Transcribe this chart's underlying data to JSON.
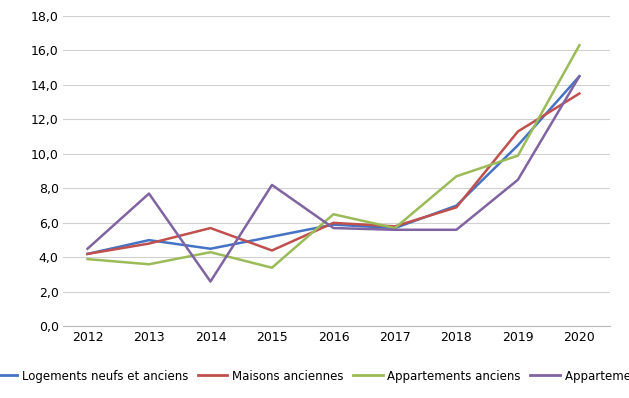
{
  "years": [
    2012,
    2013,
    2014,
    2015,
    2016,
    2017,
    2018,
    2019,
    2020
  ],
  "series": {
    "Logements neufs et anciens": {
      "values": [
        4.2,
        5.0,
        4.5,
        5.2,
        5.9,
        5.7,
        7.0,
        10.5,
        14.5
      ],
      "color": "#4472C4"
    },
    "Maisons anciennes": {
      "values": [
        4.2,
        4.8,
        5.7,
        4.4,
        6.0,
        5.8,
        6.9,
        11.3,
        13.5
      ],
      "color": "#C0504D"
    },
    "Appartements anciens": {
      "values": [
        3.9,
        3.6,
        4.3,
        3.4,
        6.5,
        5.7,
        8.7,
        9.9,
        16.3
      ],
      "color": "#9BBB59"
    },
    "Appartements neufs": {
      "values": [
        4.5,
        7.7,
        2.6,
        8.2,
        5.7,
        5.6,
        5.6,
        8.5,
        14.5
      ],
      "color": "#8064A2"
    }
  },
  "ylim": [
    0,
    18
  ],
  "yticks": [
    0.0,
    2.0,
    4.0,
    6.0,
    8.0,
    10.0,
    12.0,
    14.0,
    16.0,
    18.0
  ],
  "ytick_labels": [
    "0,0",
    "2,0",
    "4,0",
    "6,0",
    "8,0",
    "10,0",
    "12,0",
    "14,0",
    "16,0",
    "18,0"
  ],
  "background_color": "#FFFFFF",
  "grid_color": "#D0D0D0",
  "legend_order": [
    "Logements neufs et anciens",
    "Maisons anciennes",
    "Appartements anciens",
    "Appartements neufs"
  ],
  "tick_fontsize": 9,
  "legend_fontsize": 8.5
}
